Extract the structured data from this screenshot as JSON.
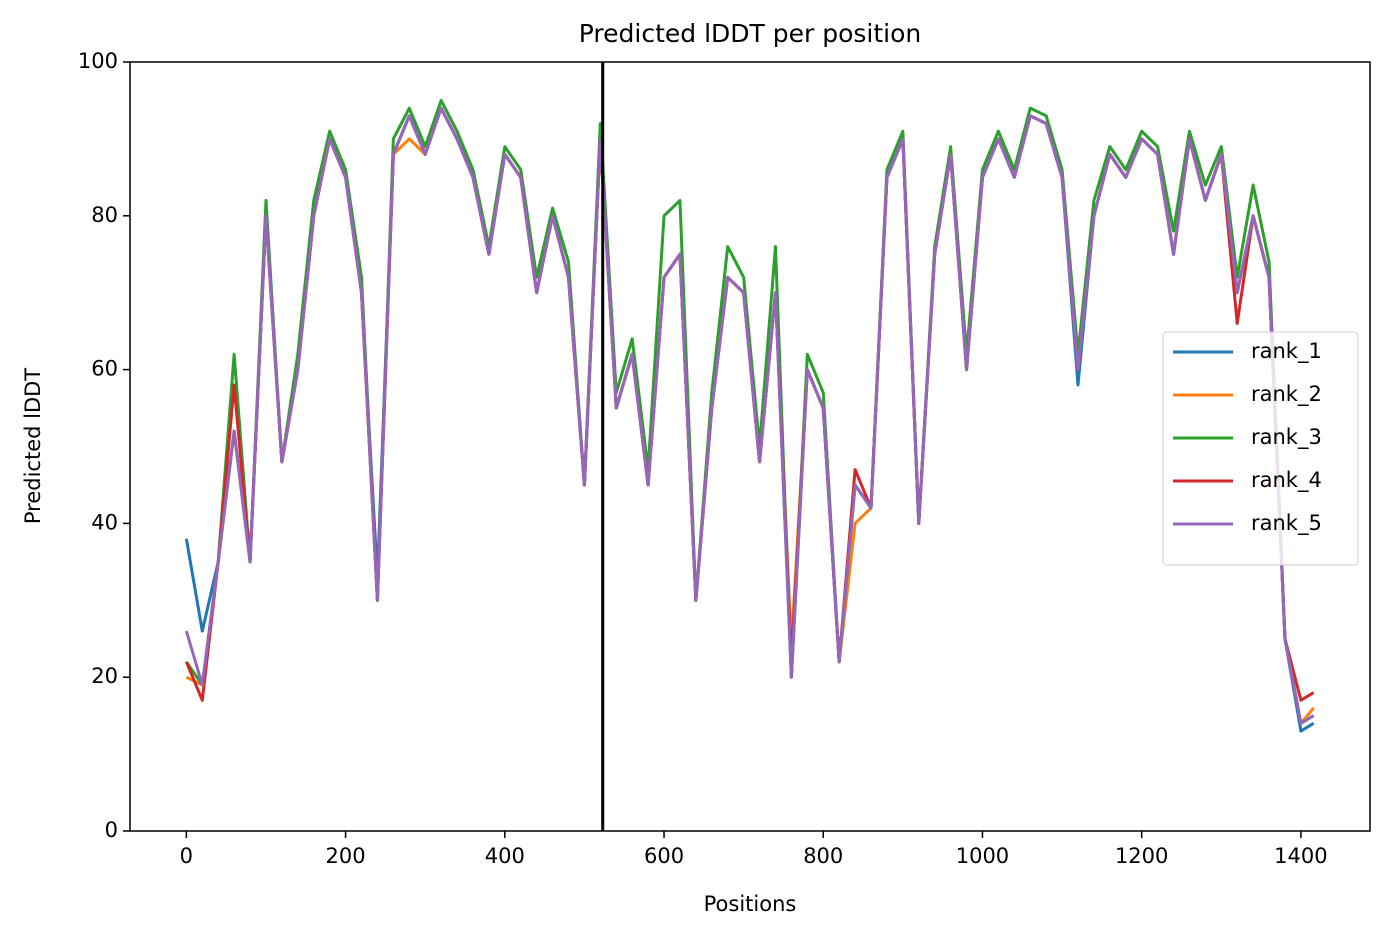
{
  "chart_data": {
    "type": "line",
    "title": "Predicted lDDT per position",
    "xlabel": "Positions",
    "ylabel": "Predicted lDDT",
    "x": [
      0,
      20,
      40,
      60,
      80,
      100,
      120,
      140,
      160,
      180,
      200,
      220,
      240,
      260,
      280,
      300,
      320,
      340,
      360,
      380,
      400,
      420,
      440,
      460,
      480,
      500,
      520,
      540,
      560,
      580,
      600,
      620,
      640,
      660,
      680,
      700,
      720,
      740,
      760,
      780,
      800,
      820,
      840,
      860,
      880,
      900,
      920,
      940,
      960,
      980,
      1000,
      1020,
      1040,
      1060,
      1080,
      1100,
      1120,
      1140,
      1160,
      1180,
      1200,
      1220,
      1240,
      1260,
      1280,
      1300,
      1320,
      1340,
      1360,
      1380,
      1400,
      1416
    ],
    "series": [
      {
        "name": "rank_1",
        "color": "#1f77b4",
        "values": [
          38,
          26,
          35,
          52,
          35,
          80,
          48,
          60,
          80,
          90,
          85,
          70,
          33,
          88,
          93,
          88,
          94,
          90,
          85,
          75,
          88,
          85,
          70,
          80,
          72,
          45,
          90,
          55,
          62,
          45,
          72,
          75,
          30,
          55,
          72,
          70,
          48,
          70,
          20,
          60,
          55,
          22,
          45,
          42,
          85,
          90,
          40,
          75,
          88,
          60,
          85,
          90,
          85,
          93,
          92,
          85,
          58,
          80,
          88,
          85,
          90,
          88,
          75,
          90,
          82,
          88,
          70,
          80,
          72,
          25,
          13,
          14
        ]
      },
      {
        "name": "rank_2",
        "color": "#ff7f0e",
        "values": [
          20,
          19,
          35,
          52,
          35,
          80,
          48,
          60,
          80,
          90,
          85,
          70,
          30,
          88,
          90,
          88,
          94,
          90,
          85,
          75,
          88,
          85,
          70,
          80,
          72,
          45,
          90,
          55,
          62,
          45,
          72,
          75,
          30,
          55,
          72,
          70,
          48,
          70,
          24,
          60,
          55,
          22,
          40,
          42,
          85,
          90,
          40,
          75,
          88,
          60,
          85,
          90,
          85,
          93,
          92,
          85,
          60,
          80,
          88,
          85,
          90,
          88,
          75,
          90,
          82,
          88,
          70,
          80,
          72,
          25,
          14,
          16
        ]
      },
      {
        "name": "rank_3",
        "color": "#2ca02c",
        "values": [
          22,
          19,
          35,
          62,
          35,
          82,
          48,
          62,
          82,
          91,
          86,
          72,
          30,
          90,
          94,
          89,
          95,
          91,
          86,
          76,
          89,
          86,
          72,
          81,
          74,
          45,
          92,
          57,
          64,
          47,
          80,
          82,
          30,
          57,
          76,
          72,
          50,
          76,
          20,
          62,
          57,
          22,
          45,
          42,
          86,
          91,
          40,
          76,
          89,
          62,
          86,
          91,
          86,
          94,
          93,
          86,
          62,
          82,
          89,
          86,
          91,
          89,
          78,
          91,
          84,
          89,
          72,
          84,
          74,
          25,
          14,
          15
        ]
      },
      {
        "name": "rank_4",
        "color": "#d62728",
        "values": [
          22,
          17,
          35,
          58,
          35,
          80,
          48,
          60,
          80,
          90,
          85,
          70,
          30,
          88,
          93,
          88,
          94,
          90,
          85,
          75,
          88,
          85,
          70,
          80,
          72,
          45,
          90,
          55,
          62,
          45,
          72,
          75,
          30,
          55,
          72,
          70,
          48,
          70,
          22,
          60,
          55,
          22,
          47,
          42,
          85,
          90,
          40,
          75,
          88,
          60,
          85,
          90,
          85,
          93,
          92,
          85,
          60,
          80,
          88,
          85,
          90,
          88,
          75,
          90,
          82,
          88,
          66,
          80,
          72,
          25,
          17,
          18
        ]
      },
      {
        "name": "rank_5",
        "color": "#9467bd",
        "values": [
          26,
          19,
          35,
          52,
          35,
          80,
          48,
          60,
          80,
          90,
          85,
          70,
          30,
          88,
          93,
          88,
          94,
          90,
          85,
          75,
          88,
          85,
          70,
          80,
          72,
          45,
          90,
          55,
          62,
          45,
          72,
          75,
          30,
          55,
          72,
          70,
          48,
          70,
          20,
          60,
          55,
          22,
          45,
          42,
          85,
          90,
          40,
          75,
          88,
          60,
          85,
          90,
          85,
          93,
          92,
          85,
          60,
          80,
          88,
          85,
          90,
          88,
          75,
          90,
          82,
          88,
          70,
          80,
          72,
          25,
          14,
          15
        ]
      }
    ],
    "vlines": [
      523
    ],
    "xlim": [
      -70.8,
      1486.8
    ],
    "ylim": [
      0,
      100
    ],
    "xticks": [
      0,
      200,
      400,
      600,
      800,
      1000,
      1200,
      1400
    ],
    "yticks": [
      0,
      20,
      40,
      60,
      80,
      100
    ],
    "legend": "center right"
  }
}
